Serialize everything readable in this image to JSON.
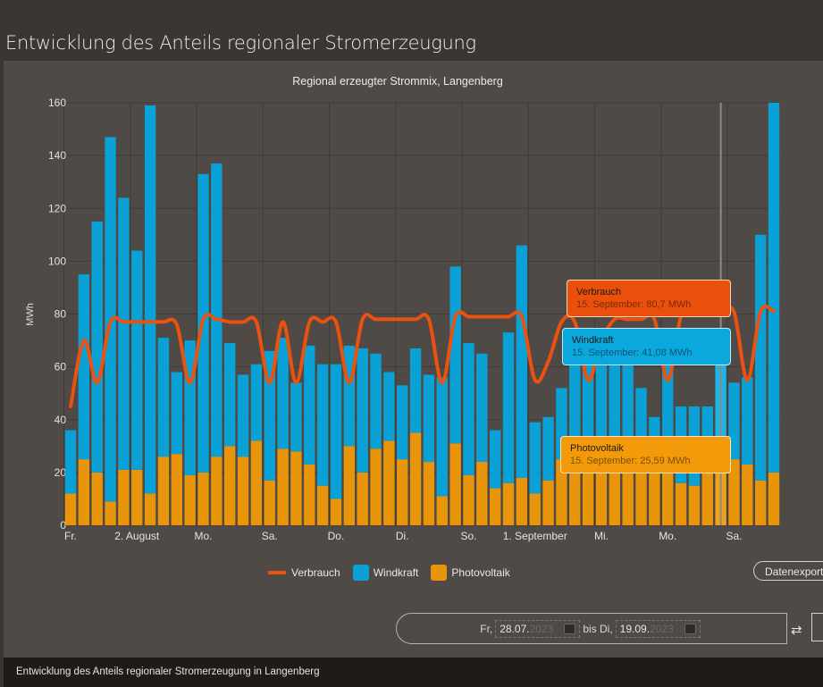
{
  "page": {
    "title": "Entwicklung des Anteils regionaler Stromerzeugung",
    "footer": "Entwicklung des Anteils regionaler Stromerzeugung in Langenberg"
  },
  "controls": {
    "export_label": "Datenexport",
    "from_prefix": "Fr,",
    "from_dm": "28.07.",
    "from_year": "2023",
    "to_prefix": "bis Di,",
    "to_dm": "19.09.",
    "to_year": "2023",
    "swap_icon": "⇄"
  },
  "legend": [
    {
      "name": "Verbrauch",
      "color": "#e9520f",
      "kind": "line"
    },
    {
      "name": "Windkraft",
      "color": "#0aa1d6",
      "kind": "bar"
    },
    {
      "name": "Photovoltaik",
      "color": "#e8950c",
      "kind": "bar"
    }
  ],
  "tooltips": {
    "verbrauch": {
      "title": "Verbrauch",
      "text": "15. September: 80,7 MWh"
    },
    "windkraft": {
      "title": "Windkraft",
      "text": "15. September: 41,08 MWh"
    },
    "photovoltaik": {
      "title": "Photovoltaik",
      "text": "15. September: 25,59 MWh"
    }
  },
  "chart_data": {
    "type": "bar",
    "stacked": true,
    "title": "Regional erzeugter Strommix, Langenberg",
    "xlabel": "",
    "ylabel": "MWh",
    "ylim": [
      0,
      160
    ],
    "yticks": [
      0,
      20,
      40,
      60,
      80,
      100,
      120,
      140,
      160
    ],
    "grid": true,
    "legend_position": "bottom",
    "x_start": "28.07.2023",
    "x_end": "19.09.2023",
    "xtick_labels": [
      {
        "index": 0,
        "label": "Fr."
      },
      {
        "index": 5,
        "label": "2. August"
      },
      {
        "index": 10,
        "label": "Mo."
      },
      {
        "index": 15,
        "label": "Sa."
      },
      {
        "index": 20,
        "label": "Do."
      },
      {
        "index": 25,
        "label": "Di."
      },
      {
        "index": 30,
        "label": "So."
      },
      {
        "index": 35,
        "label": "1. September"
      },
      {
        "index": 40,
        "label": "Mi."
      },
      {
        "index": 45,
        "label": "Mo."
      },
      {
        "index": 50,
        "label": "Sa."
      }
    ],
    "highlight_index": 49,
    "series": [
      {
        "name": "Photovoltaik",
        "type": "bar",
        "color": "#e8950c",
        "values": [
          12,
          25,
          20,
          9,
          21,
          21,
          12,
          26,
          27,
          19,
          20,
          26,
          30,
          26,
          32,
          17,
          29,
          28,
          23,
          15,
          10,
          30,
          20,
          29,
          32,
          25,
          35,
          24,
          11,
          31,
          19,
          24,
          14,
          16,
          18,
          12,
          17,
          25,
          25,
          25,
          25,
          25,
          25,
          25,
          25,
          25,
          16,
          15,
          25,
          25.59,
          25,
          23,
          17,
          20
        ]
      },
      {
        "name": "Windkraft",
        "type": "bar",
        "color": "#0aa1d6",
        "values": [
          24,
          70,
          95,
          138,
          103,
          83,
          147,
          45,
          31,
          51,
          113,
          111,
          39,
          31,
          29,
          49,
          42,
          26,
          45,
          46,
          51,
          38,
          47,
          36,
          26,
          28,
          32,
          33,
          45,
          67,
          50,
          41,
          22,
          57,
          88,
          27,
          24,
          27,
          37,
          41,
          39,
          41,
          37,
          27,
          16,
          40,
          29,
          30,
          20,
          41.08,
          29,
          33,
          93,
          140
        ]
      },
      {
        "name": "Verbrauch",
        "type": "line",
        "color": "#e9520f",
        "values": [
          45,
          70,
          54,
          77,
          77,
          77,
          77,
          77,
          76,
          54,
          78,
          78,
          77,
          77,
          77,
          54,
          77,
          54,
          77,
          77,
          77,
          54,
          78,
          78,
          78,
          78,
          78,
          78,
          54,
          79,
          79,
          79,
          79,
          79,
          79,
          55,
          62,
          77,
          77,
          55,
          70,
          78,
          78,
          78,
          78,
          55,
          79,
          80.7,
          80.7,
          80.7,
          80.7,
          55,
          81,
          81
        ]
      }
    ]
  }
}
